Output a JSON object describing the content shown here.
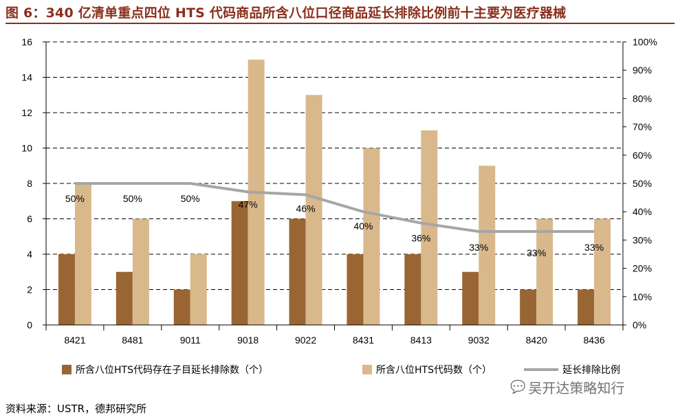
{
  "header": {
    "title": "图 6：340 亿清单重点四位 HTS 代码商品所含八位口径商品延长排除比例前十主要为医疗器械"
  },
  "footer": {
    "source": "资料来源：USTR，德邦研究所",
    "watermark": "吴开达策略知行"
  },
  "chart_data": {
    "type": "bar",
    "categories": [
      "8421",
      "8481",
      "9011",
      "9018",
      "9022",
      "8431",
      "8413",
      "9032",
      "8420",
      "8436"
    ],
    "series": [
      {
        "name": "所含八位HTS代码存在子目延长排除数（个）",
        "type": "bar",
        "axis": "left",
        "color": "#996633",
        "values": [
          4,
          3,
          2,
          7,
          6,
          4,
          4,
          3,
          2,
          2
        ]
      },
      {
        "name": "所含八位HTS代码数（个）",
        "type": "bar",
        "axis": "left",
        "color": "#D9B88C",
        "values": [
          8,
          6,
          4,
          15,
          13,
          10,
          11,
          9,
          6,
          6
        ]
      },
      {
        "name": "延长排除比例",
        "type": "line",
        "axis": "right",
        "color": "#A6A6A6",
        "values": [
          50,
          50,
          50,
          47,
          46,
          40,
          36,
          33,
          33,
          33
        ],
        "labels": [
          "50%",
          "50%",
          "50%",
          "47%",
          "46%",
          "40%",
          "36%",
          "33%",
          "33%",
          "33%"
        ]
      }
    ],
    "y_left": {
      "lim": [
        0,
        16
      ],
      "ticks": [
        "0",
        "2",
        "4",
        "6",
        "8",
        "10",
        "12",
        "14",
        "16"
      ]
    },
    "y_right": {
      "lim": [
        0,
        100
      ],
      "ticks": [
        "0%",
        "10%",
        "20%",
        "30%",
        "40%",
        "50%",
        "60%",
        "70%",
        "80%",
        "90%",
        "100%"
      ]
    },
    "grid": "horizontal dashed",
    "legend_position": "bottom"
  }
}
